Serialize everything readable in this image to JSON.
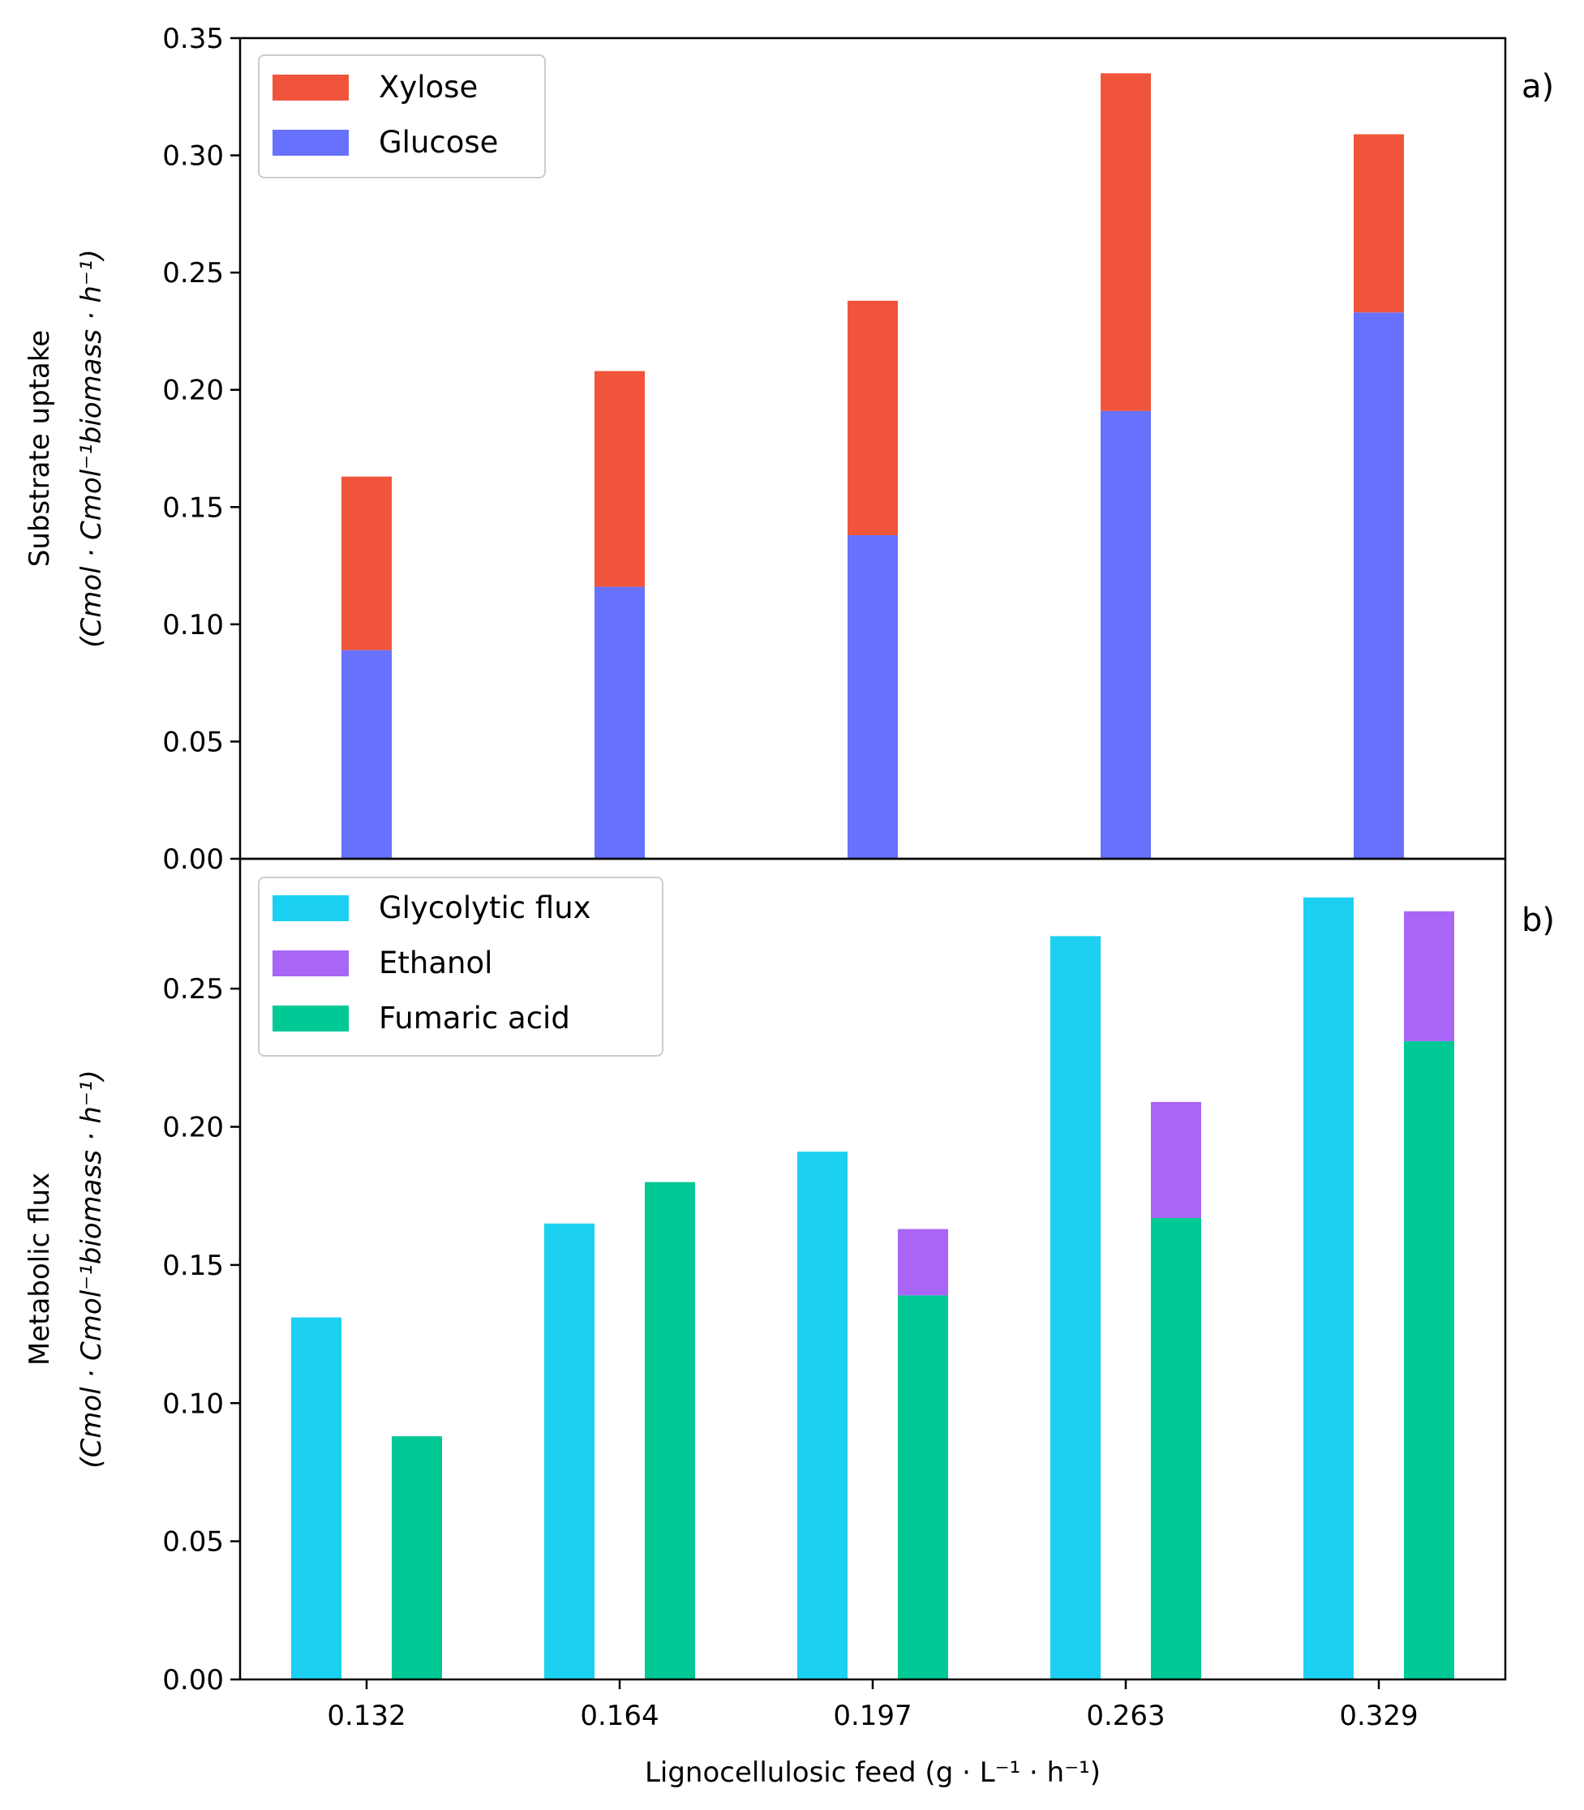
{
  "colors": {
    "xylose": "#f0553c",
    "glucose": "#6771fc",
    "glycolytic": "#1bd0f0",
    "ethanol": "#a865f6",
    "fumaric": "#00c995"
  },
  "chart_data": [
    {
      "type": "bar",
      "stacked": true,
      "panel_label": "a)",
      "categories": [
        "0.132",
        "0.164",
        "0.197",
        "0.263",
        "0.329"
      ],
      "series": [
        {
          "name": "Glucose",
          "values": [
            0.089,
            0.116,
            0.138,
            0.191,
            0.233
          ]
        },
        {
          "name": "Xylose",
          "values": [
            0.074,
            0.092,
            0.1,
            0.144,
            0.076
          ]
        }
      ],
      "ylabel": "Substrate uptake",
      "ylabel_units": "(Cmol · Cmol⁻¹biomass · h⁻¹)",
      "ylim": [
        0,
        0.35
      ],
      "yticks": [
        "0.00",
        "0.05",
        "0.10",
        "0.15",
        "0.20",
        "0.25",
        "0.30",
        "0.35"
      ],
      "legend": [
        "Xylose",
        "Glucose"
      ],
      "legend_position": "top-left"
    },
    {
      "type": "bar",
      "grouped": true,
      "panel_label": "b)",
      "categories": [
        "0.132",
        "0.164",
        "0.197",
        "0.263",
        "0.329"
      ],
      "series": [
        {
          "name": "Glycolytic flux",
          "values": [
            0.131,
            0.165,
            0.191,
            0.269,
            0.283
          ]
        },
        {
          "name": "Fumaric acid",
          "values": [
            0.088,
            0.18,
            0.139,
            0.167,
            0.231
          ]
        },
        {
          "name": "Ethanol",
          "values": [
            0,
            0,
            0.024,
            0.042,
            0.047
          ],
          "stacked_on": "Fumaric acid"
        }
      ],
      "xlabel": "Lignocellulosic feed (g · L⁻¹ · h⁻¹)",
      "ylabel": "Metabolic flux",
      "ylabel_units": "(Cmol · Cmol⁻¹biomass · h⁻¹)",
      "ylim": [
        0,
        0.297
      ],
      "yticks": [
        "0.00",
        "0.05",
        "0.10",
        "0.15",
        "0.20",
        "0.25"
      ],
      "xticks": [
        "0.132",
        "0.164",
        "0.197",
        "0.263",
        "0.329"
      ],
      "legend": [
        "Glycolytic flux",
        "Ethanol",
        "Fumaric acid"
      ],
      "legend_position": "top-left"
    }
  ]
}
